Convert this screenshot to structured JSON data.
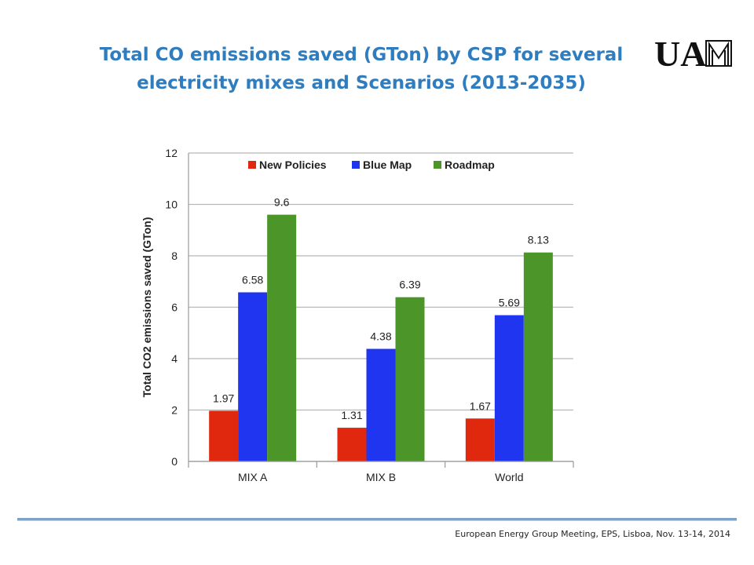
{
  "slide": {
    "title_line1": "Total CO emissions saved (GTon) by CSP for several",
    "title_line2": "electricity mixes and Scenarios (2013-2035)",
    "logo_text": "UAM",
    "footer": "European Energy Group Meeting, EPS, Lisboa, Nov. 13-14, 2014"
  },
  "chart_data": {
    "type": "bar",
    "title": "",
    "xlabel": "",
    "ylabel": "Total CO2 emissions saved (GTon)",
    "categories": [
      "MIX A",
      "MIX B",
      "World"
    ],
    "series": [
      {
        "name": "New Policies",
        "color": "#e0280f",
        "values": [
          1.97,
          1.31,
          1.67
        ]
      },
      {
        "name": "Blue Map",
        "color": "#1f35f0",
        "values": [
          6.58,
          4.38,
          5.69
        ]
      },
      {
        "name": "Roadmap",
        "color": "#4b9529",
        "values": [
          9.6,
          6.39,
          8.13
        ]
      }
    ],
    "ylim": [
      0,
      12
    ],
    "yticks": [
      0,
      2,
      4,
      6,
      8,
      10,
      12
    ],
    "grid": true,
    "legend_position": "top"
  }
}
